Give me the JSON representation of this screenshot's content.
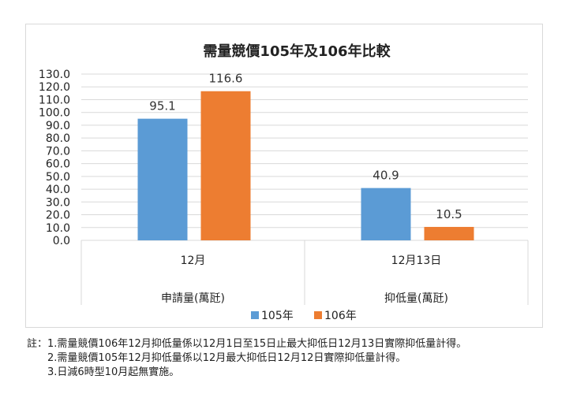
{
  "chart_data": {
    "type": "bar",
    "title": "需量競價105年及106年比較",
    "groups": [
      {
        "category": "12月",
        "sublabel": "申請量(萬瓩)"
      },
      {
        "category": "12月13日",
        "sublabel": "抑低量(萬瓩)"
      }
    ],
    "categories": [
      "12月",
      "12月13日"
    ],
    "series": [
      {
        "name": "105年",
        "values": [
          95.1,
          40.9
        ],
        "color": "#5b9bd5"
      },
      {
        "name": "106年",
        "values": [
          116.6,
          10.5
        ],
        "color": "#ed7d31"
      }
    ],
    "ylim": [
      0,
      130
    ],
    "ytick_step": 10,
    "ytick_labels": [
      "0.0",
      "10.0",
      "20.0",
      "30.0",
      "40.0",
      "50.0",
      "60.0",
      "70.0",
      "80.0",
      "90.0",
      "100.0",
      "110.0",
      "120.0",
      "130.0"
    ],
    "grid": true,
    "legend_position": "bottom"
  },
  "notes": {
    "prefix": "註：",
    "line1": "1.需量競價106年12月抑低量係以12月1日至15日止最大抑低日12月13日實際抑低量計得。",
    "line2": "2.需量競價105年12月抑低量係以12月最大抑低日12月12日實際抑低量計得。",
    "line3": "3.日減6時型10月起無實施。"
  }
}
